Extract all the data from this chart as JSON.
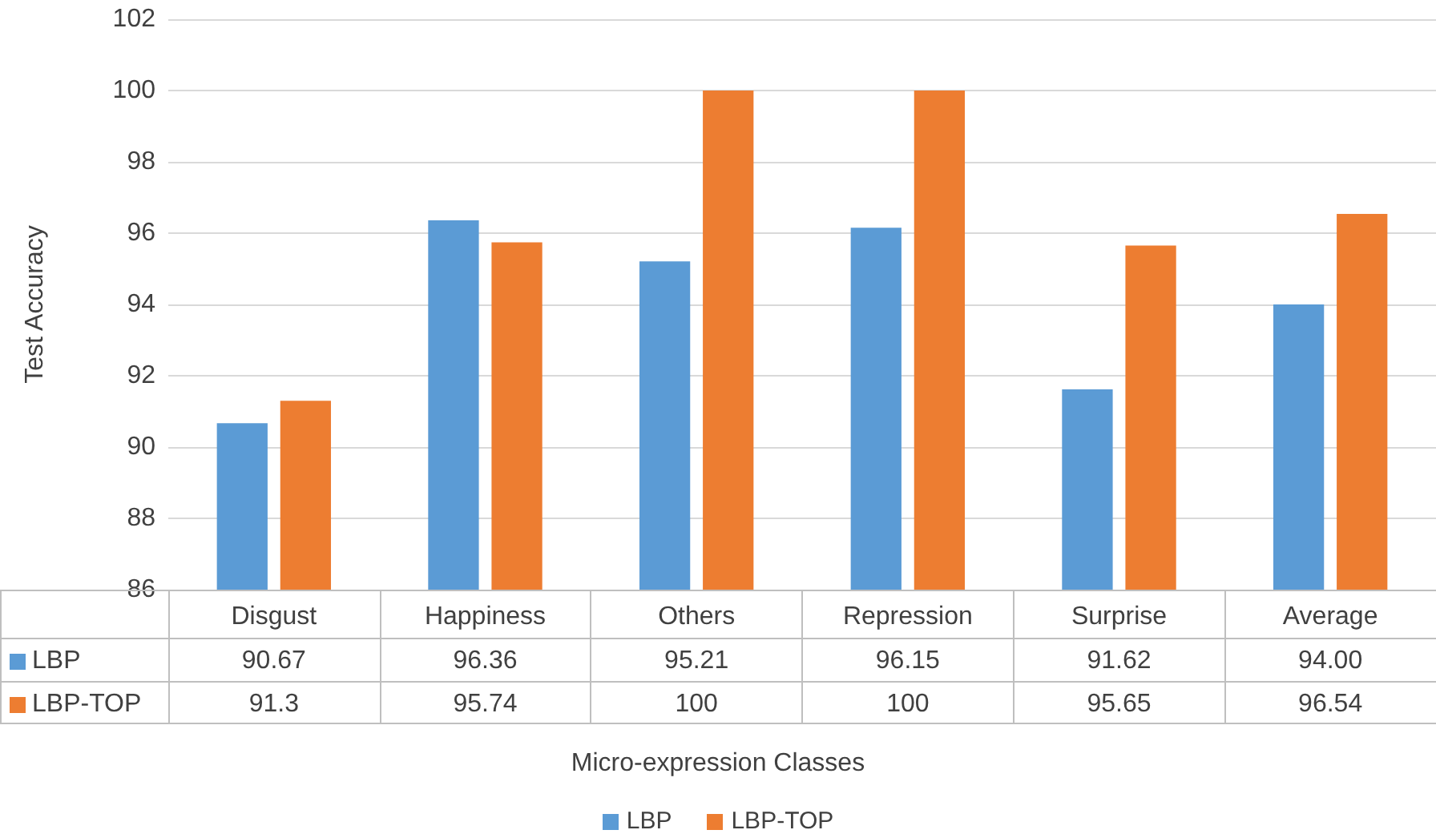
{
  "chart_data": {
    "type": "bar",
    "annotations": [
      "Micro-expression Classes"
    ],
    "ylabel": "Test Accuracy",
    "categories": [
      "Disgust",
      "Happiness",
      "Others",
      "Repression",
      "Surprise",
      "Average"
    ],
    "series": [
      {
        "name": "LBP",
        "color": "#5b9bd5",
        "values": [
          90.67,
          96.36,
          95.21,
          96.15,
          91.62,
          94.0
        ],
        "value_labels": [
          "90.67",
          "96.36",
          "95.21",
          "96.15",
          "91.62",
          "94.00"
        ]
      },
      {
        "name": "LBP-TOP",
        "color": "#ed7d31",
        "values": [
          91.3,
          95.74,
          100,
          100,
          95.65,
          96.54
        ],
        "value_labels": [
          "91.3",
          "95.74",
          "100",
          "100",
          "95.65",
          "96.54"
        ]
      }
    ],
    "ylim": [
      86,
      102
    ],
    "yticks": [
      86,
      88,
      90,
      92,
      94,
      96,
      98,
      100,
      102
    ],
    "grid": "y",
    "legend": "bottom"
  }
}
